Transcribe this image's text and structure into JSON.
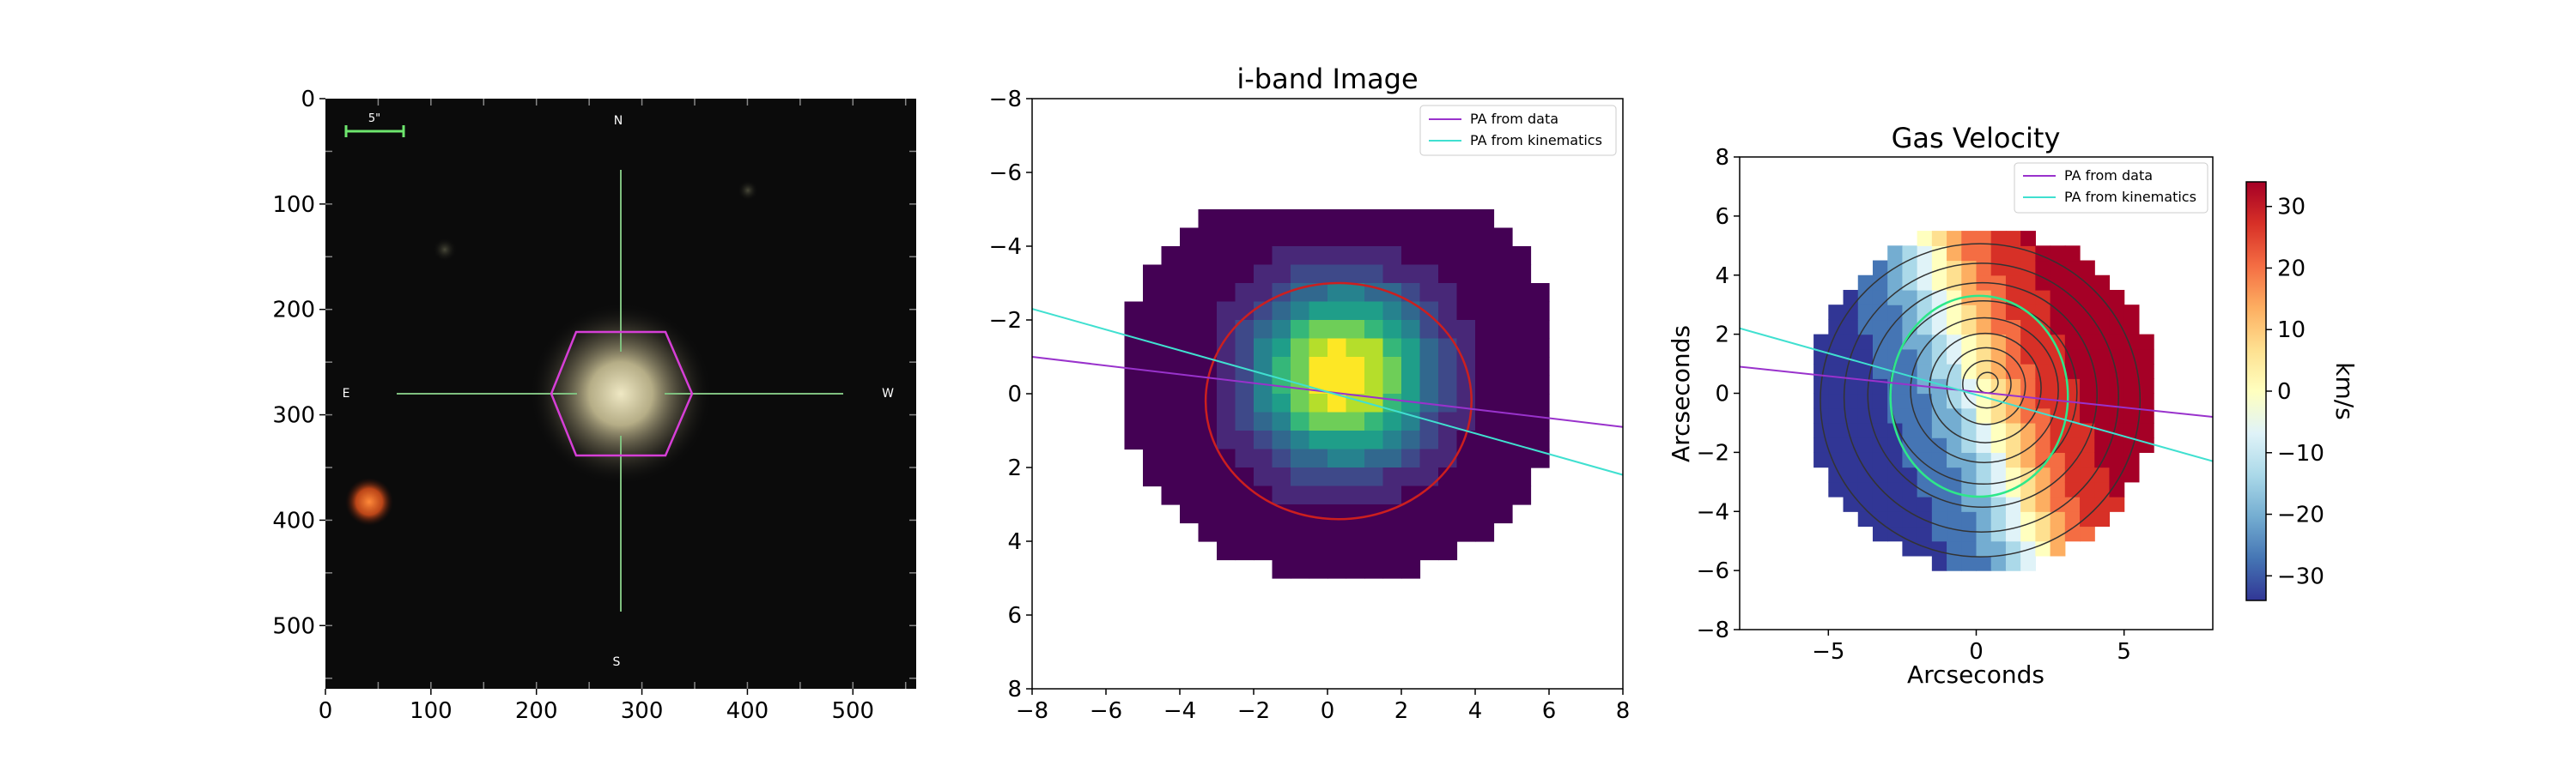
{
  "colors": {
    "pa_data": "#9932cc",
    "pa_kinematics": "#40e0d0",
    "ellipse_iband": "#cc1f1f",
    "ellipse_gas": "#2ee88a",
    "contours": "#333333",
    "hexagon": "#d63fd6",
    "crosshair": "#7fbf7f",
    "scalebar": "#6ee66e"
  },
  "chart_data": [
    {
      "type": "image",
      "title": "",
      "xlim": [
        0,
        560
      ],
      "ylim": [
        560,
        0
      ],
      "xticks": [
        0,
        100,
        200,
        300,
        400,
        500
      ],
      "yticks": [
        0,
        100,
        200,
        300,
        400,
        500
      ],
      "xtick_labels": [
        "0",
        "100",
        "200",
        "300",
        "400",
        "500"
      ],
      "ytick_labels": [
        "0",
        "100",
        "200",
        "300",
        "400",
        "500"
      ],
      "compass": {
        "n": "N",
        "s": "S",
        "e": "E",
        "w": "W"
      },
      "scalebar_label": "5\"",
      "galaxy_center": [
        280,
        280
      ],
      "neighbor_source": [
        42,
        383
      ]
    },
    {
      "type": "heatmap",
      "title": "i-band Image",
      "xlim": [
        -8,
        8
      ],
      "ylim": [
        8,
        -8
      ],
      "xticks": [
        -8,
        -6,
        -4,
        -2,
        0,
        2,
        4,
        6,
        8
      ],
      "yticks": [
        -8,
        -6,
        -4,
        -2,
        0,
        2,
        4,
        6,
        8
      ],
      "xtick_labels": [
        "−8",
        "−6",
        "−4",
        "−2",
        "0",
        "2",
        "4",
        "6",
        "8"
      ],
      "ytick_labels": [
        "−8",
        "−6",
        "−4",
        "−2",
        "0",
        "2",
        "4",
        "6",
        "8"
      ],
      "colormap": "viridis",
      "peak_center": [
        0.4,
        -0.5
      ],
      "ellipse": {
        "center": [
          0.3,
          0.2
        ],
        "a": 3.6,
        "b": 3.2
      },
      "legend": {
        "placement": "upper-right",
        "entries": [
          "PA from data",
          "PA from kinematics"
        ]
      },
      "lines": [
        {
          "name": "PA from data",
          "x": [
            -8,
            8
          ],
          "y": [
            -1.0,
            0.9
          ]
        },
        {
          "name": "PA from kinematics",
          "x": [
            -8,
            8
          ],
          "y": [
            -2.3,
            2.2
          ]
        }
      ]
    },
    {
      "type": "heatmap",
      "title": "Gas Velocity",
      "xlabel": "Arcseconds",
      "ylabel": "Arcseconds",
      "xlim": [
        -8,
        8
      ],
      "ylim": [
        -8,
        8
      ],
      "xticks": [
        -5,
        0,
        5
      ],
      "yticks": [
        -8,
        -6,
        -4,
        -2,
        0,
        2,
        4,
        6,
        8
      ],
      "xtick_labels": [
        "−5",
        "0",
        "5"
      ],
      "ytick_labels": [
        "−8",
        "−6",
        "−4",
        "−2",
        "0",
        "2",
        "4",
        "6",
        "8"
      ],
      "colormap": "RdYlBu_r",
      "velocity_range": [
        -34,
        34
      ],
      "ellipse": {
        "center": [
          0.1,
          -0.1
        ],
        "a": 3.0,
        "b": 3.4
      },
      "contour_center": [
        0.4,
        0.4
      ],
      "legend": {
        "placement": "upper-right",
        "entries": [
          "PA from data",
          "PA from kinematics"
        ]
      },
      "lines": [
        {
          "name": "PA from data",
          "x": [
            -8,
            8
          ],
          "y": [
            0.9,
            -0.8
          ]
        },
        {
          "name": "PA from kinematics",
          "x": [
            -8,
            8
          ],
          "y": [
            2.2,
            -2.3
          ]
        }
      ],
      "colorbar": {
        "label": "km/s",
        "ticks": [
          30,
          20,
          10,
          0,
          -10,
          -20,
          -30
        ],
        "tick_labels": [
          "30",
          "20",
          "10",
          "0",
          "−10",
          "−20",
          "−30"
        ]
      }
    }
  ]
}
